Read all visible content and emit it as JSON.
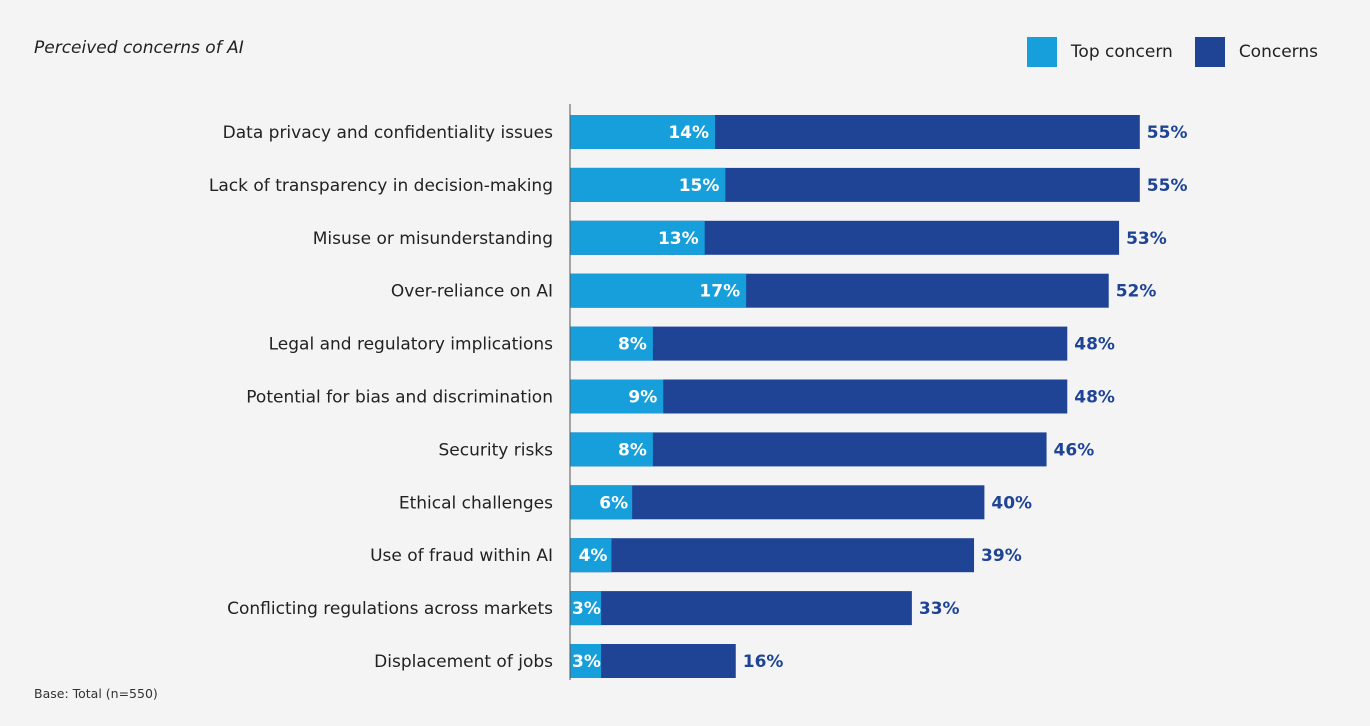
{
  "colors": {
    "top_concern": "#169fdb",
    "concerns": "#1f4496",
    "axis": "#555555"
  },
  "chart_data": {
    "type": "bar",
    "orientation": "horizontal",
    "stacked": "overlay",
    "title": "Perceived concerns of AI",
    "legend_position": "top-right",
    "grid": false,
    "xlim": [
      0,
      60
    ],
    "categories": [
      "Data privacy and confidentiality issues",
      "Lack of transparency in decision-making",
      "Misuse or misunderstanding",
      "Over-reliance on AI",
      "Legal and regulatory implications",
      "Potential for bias and discrimination",
      "Security risks",
      "Ethical challenges",
      "Use of fraud within AI",
      "Conflicting regulations across markets",
      "Displacement of jobs"
    ],
    "series": [
      {
        "name": "Top concern",
        "values": [
          14,
          15,
          13,
          17,
          8,
          9,
          8,
          6,
          4,
          3,
          3
        ],
        "labels": [
          "14%",
          "15%",
          "13%",
          "17%",
          "8%",
          "9%",
          "8%",
          "6%",
          "4%",
          "3%",
          "3%"
        ]
      },
      {
        "name": "Concerns",
        "values": [
          55,
          55,
          53,
          52,
          48,
          48,
          46,
          40,
          39,
          33,
          16
        ],
        "labels": [
          "55%",
          "55%",
          "53%",
          "52%",
          "48%",
          "48%",
          "46%",
          "40%",
          "39%",
          "33%",
          "16%"
        ]
      }
    ]
  },
  "footer": {
    "base_note": "Base: Total (n=550)"
  }
}
